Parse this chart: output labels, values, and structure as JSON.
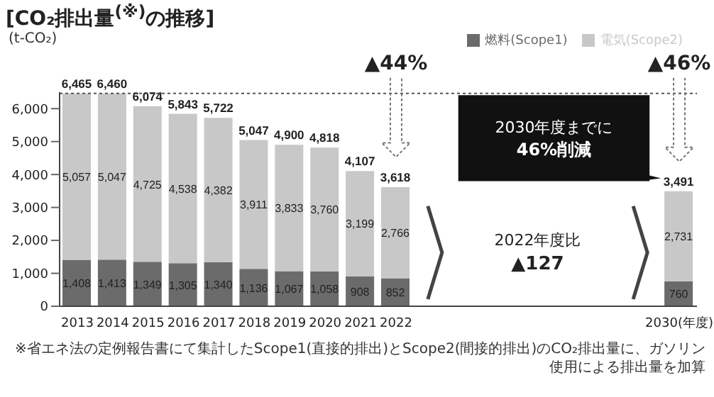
{
  "chart_data": {
    "type": "bar",
    "title": "[CO₂排出量$^{(※)}$の推移]",
    "ylabel": "(t-CO₂)",
    "categories": [
      "2013",
      "2014",
      "2015",
      "2016",
      "2017",
      "2018",
      "2019",
      "2020",
      "2021",
      "2022",
      null,
      null,
      null,
      null,
      null,
      null,
      null,
      "2030(年度)"
    ],
    "stacked": true,
    "series": [
      {
        "name": "燃料(Scope1)",
        "color": "#6b6b6b",
        "values": [
          1408,
          1413,
          1349,
          1305,
          1340,
          1136,
          1067,
          1058,
          908,
          852,
          null,
          null,
          null,
          null,
          null,
          null,
          null,
          760
        ],
        "value_labels": [
          "1,408",
          "1,413",
          "1,349",
          "1,305",
          "1,340",
          "1,136",
          "1,067",
          "1,058",
          "908",
          "852",
          null,
          null,
          null,
          null,
          null,
          null,
          null,
          "760"
        ]
      },
      {
        "name": "電気(Scope2)",
        "color": "#c8c8c8",
        "values": [
          5057,
          5047,
          4725,
          4538,
          4382,
          3911,
          3833,
          3760,
          3199,
          2766,
          null,
          null,
          null,
          null,
          null,
          null,
          null,
          2731
        ],
        "value_labels": [
          "5,057",
          "5,047",
          "4,725",
          "4,538",
          "4,382",
          "3,911",
          "3,833",
          "3,760",
          "3,199",
          "2,766",
          null,
          null,
          null,
          null,
          null,
          null,
          null,
          "2,731"
        ]
      }
    ],
    "totals": [
      "6,465",
      "6,460",
      "6,074",
      "5,843",
      "5,722",
      "5,047",
      "4,900",
      "4,818",
      "4,107",
      "3,618",
      null,
      null,
      null,
      null,
      null,
      null,
      null,
      "3,491"
    ],
    "ylim": [
      0,
      6500
    ],
    "yticks": [
      0,
      {
        "value": 1000,
        "label": "1,000"
      },
      {
        "value": 2000,
        "label": "2,000"
      },
      {
        "value": 3000,
        "label": "3,000"
      },
      {
        "value": 4000,
        "label": "4,000"
      },
      {
        "value": 5000,
        "label": "5,000"
      },
      {
        "value": 6000,
        "label": "6,000"
      }
    ],
    "ref_lines": [
      {
        "axis": "y",
        "value": 6465,
        "label": null,
        "color": "#555555",
        "line_style": "dotted"
      }
    ],
    "annotations": [
      {
        "text": "▲44%",
        "x": "2022",
        "y": 6465
      },
      {
        "text": "▲46%",
        "x": "2030(年度)",
        "y": 6465
      },
      "2030年度までに",
      "46%削減",
      "2022年度比",
      "▲127",
      "※省エネ法の定例報告書にて集計したScope1(直接的排出)とScope2(間接的排出)のCO₂排出量に、ガソリン使用による排出量を加算"
    ],
    "legend": "top right",
    "grid": false
  }
}
